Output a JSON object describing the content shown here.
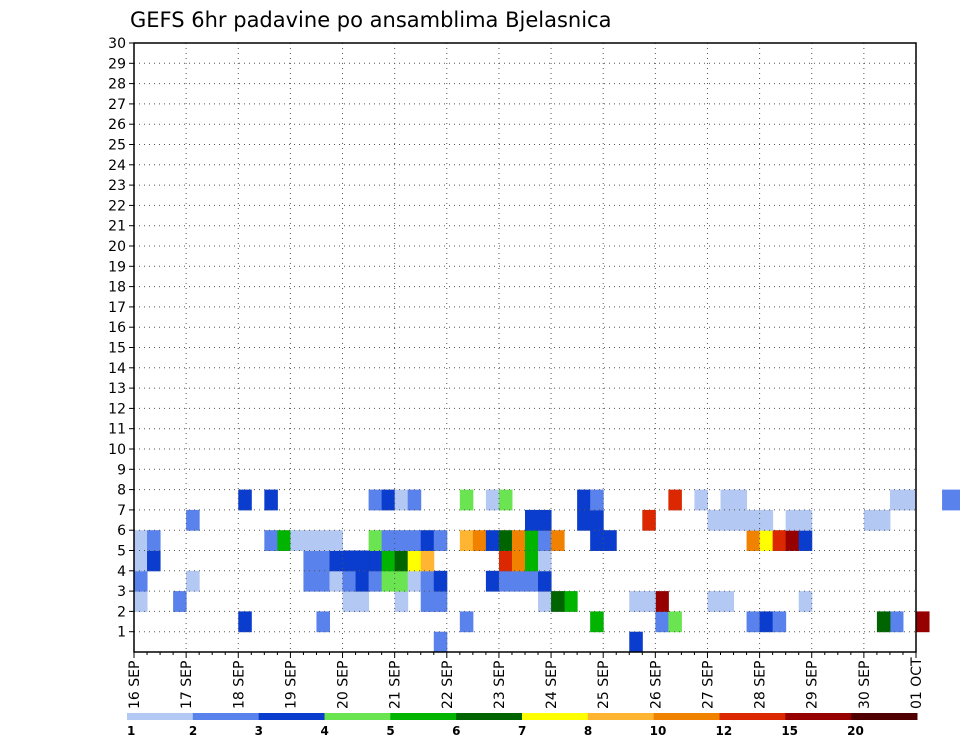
{
  "chart_data": {
    "type": "heatmap",
    "title": "GEFS 6hr padavine po ansamblima Bjelasnica",
    "xlabel": "",
    "ylabel": "",
    "x_start": "16 SEP 00Z",
    "x_end": "01 OCT 00Z",
    "step_hours": 6,
    "x_tick_labels": [
      "16 SEP",
      "17 SEP",
      "18 SEP",
      "19 SEP",
      "20 SEP",
      "21 SEP",
      "22 SEP",
      "23 SEP",
      "24 SEP",
      "25 SEP",
      "26 SEP",
      "27 SEP",
      "28 SEP",
      "29 SEP",
      "30 SEP",
      "01 OCT"
    ],
    "y_tick_labels": [
      "1",
      "2",
      "3",
      "4",
      "5",
      "6",
      "7",
      "8",
      "9",
      "10",
      "11",
      "12",
      "13",
      "14",
      "15",
      "16",
      "17",
      "18",
      "19",
      "20",
      "21",
      "22",
      "23",
      "24",
      "25",
      "26",
      "27",
      "28",
      "29",
      "30"
    ],
    "ylim": [
      0,
      30
    ],
    "grid": true,
    "legend_placement": "bottom",
    "legend_levels": [
      1,
      2,
      3,
      4,
      5,
      6,
      7,
      8,
      10,
      12,
      15,
      20
    ],
    "legend_colors": [
      "#b4c8f4",
      "#5a82ec",
      "#0a3ccd",
      "#6ae450",
      "#00b400",
      "#006400",
      "#ffff00",
      "#ffb432",
      "#f08200",
      "#dc2800",
      "#960000",
      "#500000"
    ],
    "cells": [
      {
        "m": 0,
        "t": 23,
        "c": 1
      },
      {
        "m": 0,
        "t": 38,
        "c": 2
      },
      {
        "m": 1,
        "t": 8,
        "c": 2
      },
      {
        "m": 1,
        "t": 14,
        "c": 1
      },
      {
        "m": 1,
        "t": 25,
        "c": 1
      },
      {
        "m": 1,
        "t": 35,
        "c": 4
      },
      {
        "m": 1,
        "t": 40,
        "c": 1
      },
      {
        "m": 1,
        "t": 41,
        "c": 3
      },
      {
        "m": 1,
        "t": 60,
        "c": 10
      },
      {
        "m": 1,
        "t": 58,
        "c": 1
      },
      {
        "m": 1,
        "t": 47,
        "c": 1
      },
      {
        "m": 1,
        "t": 57,
        "c": 5
      },
      {
        "m": 1,
        "t": 48,
        "c": 2
      },
      {
        "m": 1,
        "t": 49,
        "c": 1
      },
      {
        "m": 2,
        "t": 0,
        "c": 0
      },
      {
        "m": 2,
        "t": 3,
        "c": 1
      },
      {
        "m": 2,
        "t": 16,
        "c": 0
      },
      {
        "m": 2,
        "t": 17,
        "c": 0
      },
      {
        "m": 2,
        "t": 20,
        "c": 0
      },
      {
        "m": 2,
        "t": 22,
        "c": 1
      },
      {
        "m": 2,
        "t": 23,
        "c": 1
      },
      {
        "m": 2,
        "t": 31,
        "c": 0
      },
      {
        "m": 2,
        "t": 38,
        "c": 0
      },
      {
        "m": 2,
        "t": 33,
        "c": 4
      },
      {
        "m": 2,
        "t": 32,
        "c": 5
      },
      {
        "m": 2,
        "t": 40,
        "c": 10
      },
      {
        "m": 2,
        "t": 39,
        "c": 0
      },
      {
        "m": 2,
        "t": 44,
        "c": 0
      },
      {
        "m": 2,
        "t": 45,
        "c": 0
      },
      {
        "m": 2,
        "t": 51,
        "c": 0
      },
      {
        "m": 3,
        "t": 0,
        "c": 1
      },
      {
        "m": 3,
        "t": 4,
        "c": 0
      },
      {
        "m": 3,
        "t": 13,
        "c": 1
      },
      {
        "m": 3,
        "t": 14,
        "c": 1
      },
      {
        "m": 3,
        "t": 15,
        "c": 0
      },
      {
        "m": 3,
        "t": 16,
        "c": 1
      },
      {
        "m": 3,
        "t": 17,
        "c": 2
      },
      {
        "m": 3,
        "t": 18,
        "c": 1
      },
      {
        "m": 3,
        "t": 19,
        "c": 3
      },
      {
        "m": 3,
        "t": 20,
        "c": 3
      },
      {
        "m": 3,
        "t": 21,
        "c": 0
      },
      {
        "m": 3,
        "t": 22,
        "c": 1
      },
      {
        "m": 3,
        "t": 23,
        "c": 2
      },
      {
        "m": 3,
        "t": 27,
        "c": 2
      },
      {
        "m": 3,
        "t": 28,
        "c": 1
      },
      {
        "m": 3,
        "t": 29,
        "c": 1
      },
      {
        "m": 3,
        "t": 30,
        "c": 1
      },
      {
        "m": 3,
        "t": 31,
        "c": 2
      },
      {
        "m": 4,
        "t": 0,
        "c": 0
      },
      {
        "m": 4,
        "t": 1,
        "c": 2
      },
      {
        "m": 4,
        "t": 13,
        "c": 1
      },
      {
        "m": 4,
        "t": 14,
        "c": 1
      },
      {
        "m": 4,
        "t": 15,
        "c": 2
      },
      {
        "m": 4,
        "t": 16,
        "c": 2
      },
      {
        "m": 4,
        "t": 17,
        "c": 2
      },
      {
        "m": 4,
        "t": 18,
        "c": 2
      },
      {
        "m": 4,
        "t": 19,
        "c": 4
      },
      {
        "m": 4,
        "t": 20,
        "c": 5
      },
      {
        "m": 4,
        "t": 21,
        "c": 6
      },
      {
        "m": 4,
        "t": 22,
        "c": 7
      },
      {
        "m": 4,
        "t": 28,
        "c": 9
      },
      {
        "m": 4,
        "t": 29,
        "c": 8
      },
      {
        "m": 4,
        "t": 30,
        "c": 4
      },
      {
        "m": 4,
        "t": 31,
        "c": 0
      },
      {
        "m": 5,
        "t": 0,
        "c": 0
      },
      {
        "m": 5,
        "t": 1,
        "c": 1
      },
      {
        "m": 5,
        "t": 10,
        "c": 1
      },
      {
        "m": 5,
        "t": 11,
        "c": 4
      },
      {
        "m": 5,
        "t": 12,
        "c": 0
      },
      {
        "m": 5,
        "t": 13,
        "c": 0
      },
      {
        "m": 5,
        "t": 14,
        "c": 0
      },
      {
        "m": 5,
        "t": 15,
        "c": 0
      },
      {
        "m": 5,
        "t": 18,
        "c": 3
      },
      {
        "m": 5,
        "t": 19,
        "c": 1
      },
      {
        "m": 5,
        "t": 20,
        "c": 1
      },
      {
        "m": 5,
        "t": 21,
        "c": 1
      },
      {
        "m": 5,
        "t": 22,
        "c": 2
      },
      {
        "m": 5,
        "t": 23,
        "c": 1
      },
      {
        "m": 5,
        "t": 25,
        "c": 7
      },
      {
        "m": 5,
        "t": 26,
        "c": 8
      },
      {
        "m": 5,
        "t": 27,
        "c": 2
      },
      {
        "m": 5,
        "t": 28,
        "c": 5
      },
      {
        "m": 5,
        "t": 29,
        "c": 8
      },
      {
        "m": 5,
        "t": 30,
        "c": 4
      },
      {
        "m": 5,
        "t": 31,
        "c": 1
      },
      {
        "m": 5,
        "t": 32,
        "c": 8
      },
      {
        "m": 5,
        "t": 35,
        "c": 2
      },
      {
        "m": 5,
        "t": 36,
        "c": 2
      },
      {
        "m": 5,
        "t": 47,
        "c": 8
      },
      {
        "m": 5,
        "t": 48,
        "c": 6
      },
      {
        "m": 5,
        "t": 49,
        "c": 9
      },
      {
        "m": 5,
        "t": 50,
        "c": 10
      },
      {
        "m": 5,
        "t": 51,
        "c": 2
      },
      {
        "m": 6,
        "t": 4,
        "c": 1
      },
      {
        "m": 6,
        "t": 30,
        "c": 2
      },
      {
        "m": 6,
        "t": 31,
        "c": 2
      },
      {
        "m": 6,
        "t": 34,
        "c": 2
      },
      {
        "m": 6,
        "t": 35,
        "c": 2
      },
      {
        "m": 6,
        "t": 39,
        "c": 9
      },
      {
        "m": 6,
        "t": 44,
        "c": 0
      },
      {
        "m": 6,
        "t": 45,
        "c": 0
      },
      {
        "m": 6,
        "t": 46,
        "c": 0
      },
      {
        "m": 6,
        "t": 47,
        "c": 0
      },
      {
        "m": 6,
        "t": 48,
        "c": 0
      },
      {
        "m": 6,
        "t": 50,
        "c": 0
      },
      {
        "m": 6,
        "t": 51,
        "c": 0
      },
      {
        "m": 6,
        "t": 56,
        "c": 0
      },
      {
        "m": 6,
        "t": 57,
        "c": 0
      },
      {
        "m": 7,
        "t": 8,
        "c": 2
      },
      {
        "m": 7,
        "t": 10,
        "c": 2
      },
      {
        "m": 7,
        "t": 18,
        "c": 1
      },
      {
        "m": 7,
        "t": 19,
        "c": 2
      },
      {
        "m": 7,
        "t": 20,
        "c": 0
      },
      {
        "m": 7,
        "t": 21,
        "c": 1
      },
      {
        "m": 7,
        "t": 25,
        "c": 3
      },
      {
        "m": 7,
        "t": 27,
        "c": 0
      },
      {
        "m": 7,
        "t": 28,
        "c": 3
      },
      {
        "m": 7,
        "t": 34,
        "c": 2
      },
      {
        "m": 7,
        "t": 35,
        "c": 1
      },
      {
        "m": 7,
        "t": 41,
        "c": 9
      },
      {
        "m": 7,
        "t": 43,
        "c": 0
      },
      {
        "m": 7,
        "t": 45,
        "c": 0
      },
      {
        "m": 7,
        "t": 46,
        "c": 0
      },
      {
        "m": 7,
        "t": 58,
        "c": 0
      },
      {
        "m": 7,
        "t": 59,
        "c": 0
      },
      {
        "m": 7,
        "t": 62,
        "c": 1
      },
      {
        "m": 7,
        "t": 63,
        "c": 1
      }
    ],
    "notes_on_cells": "m = ensemble member row index (0 = member 1 at bottom), t = 6-hour step index from 16 SEP 00Z, c = color index into legend_colors"
  }
}
